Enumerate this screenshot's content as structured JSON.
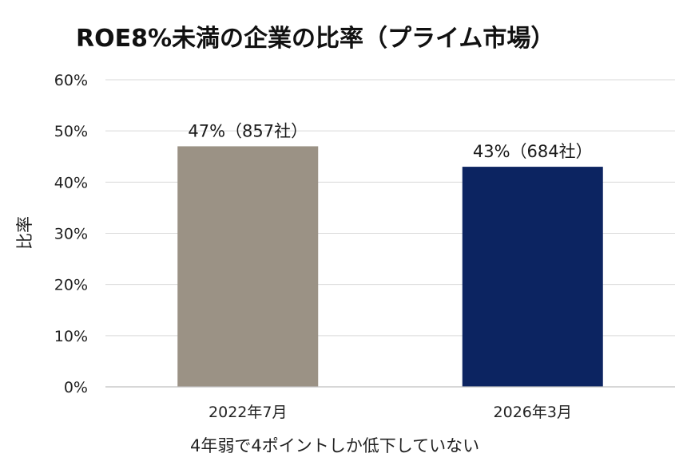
{
  "chart_data": {
    "type": "bar",
    "title": "ROE8%未満の企業の比率（プライム市場）",
    "ylabel": "比率",
    "xlabel": "",
    "categories": [
      "2022年7月",
      "2026年3月"
    ],
    "values": [
      47,
      43
    ],
    "data_labels": [
      "47%（857社）",
      "43%（684社）"
    ],
    "bar_colors": [
      "#9b9285",
      "#0c2461"
    ],
    "ylim": [
      0,
      60
    ],
    "yticks": [
      "0%",
      "10%",
      "20%",
      "30%",
      "40%",
      "50%",
      "60%"
    ],
    "grid": true,
    "legend": "none",
    "annotation": "4年弱で4ポイントしか低下していない"
  }
}
